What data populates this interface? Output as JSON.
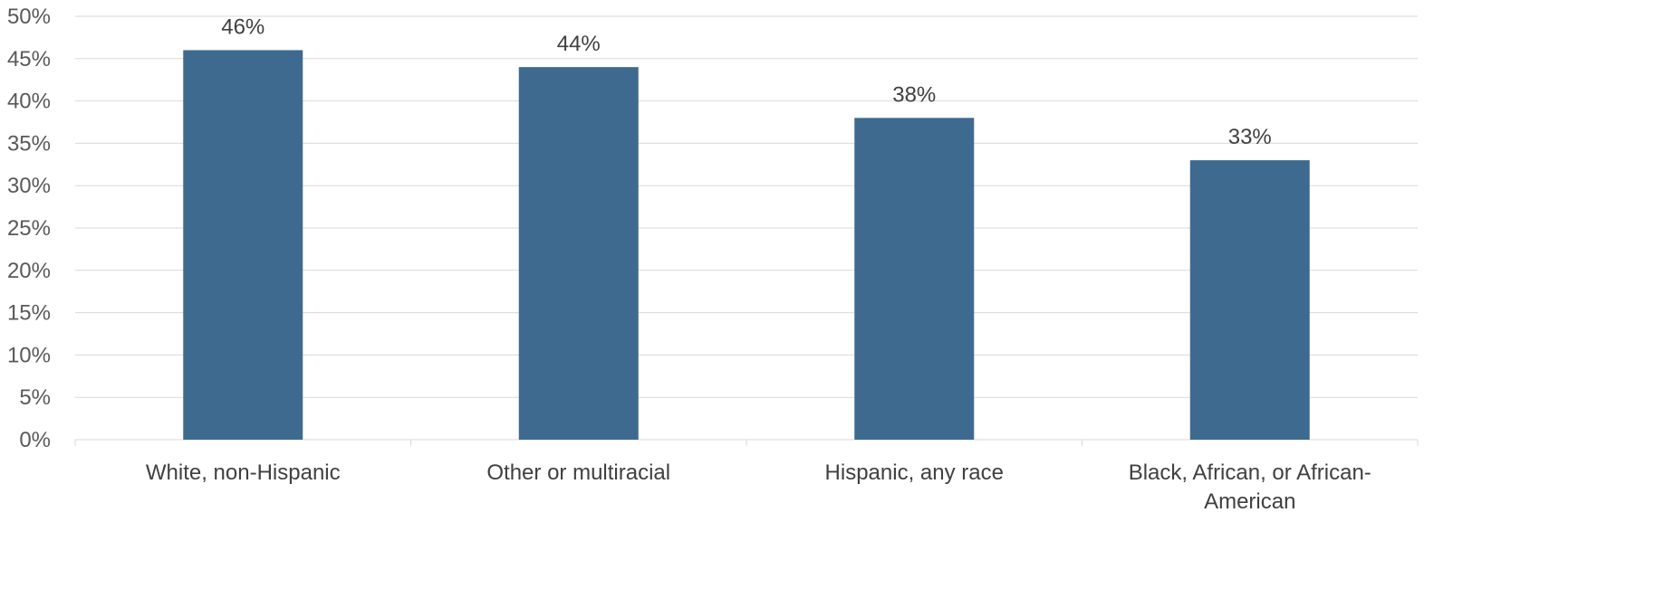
{
  "chart_data": {
    "type": "bar",
    "title": "",
    "xlabel": "",
    "ylabel": "",
    "categories": [
      [
        "White, non-Hispanic"
      ],
      [
        "Other or multiracial"
      ],
      [
        "Hispanic, any race"
      ],
      [
        "Black, African, or African-",
        "American"
      ]
    ],
    "values": [
      46,
      44,
      38,
      33
    ],
    "data_labels": [
      "46%",
      "44%",
      "38%",
      "33%"
    ],
    "ylim": [
      0,
      50
    ],
    "y_ticks": [
      0,
      5,
      10,
      15,
      20,
      25,
      30,
      35,
      40,
      45,
      50
    ],
    "y_tick_labels": [
      "0%",
      "5%",
      "10%",
      "15%",
      "20%",
      "25%",
      "30%",
      "35%",
      "40%",
      "45%",
      "50%"
    ],
    "grid": true,
    "legend": "none",
    "colors": {
      "bar": "#3e6a8f",
      "grid": "#d9d9d9"
    }
  }
}
